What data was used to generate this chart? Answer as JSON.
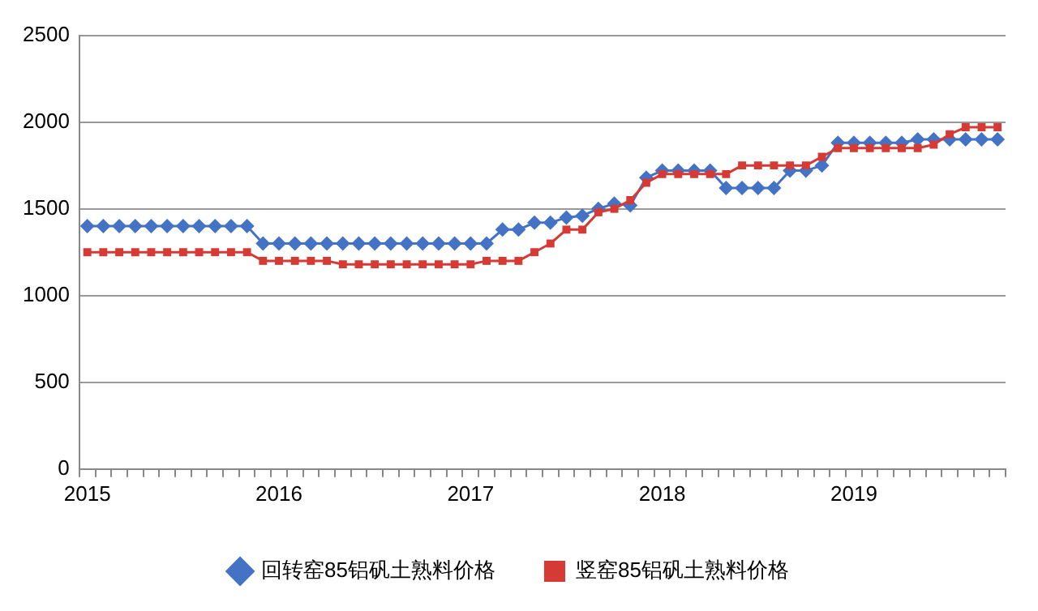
{
  "chart_data": {
    "type": "line",
    "categories": [
      "2015",
      null,
      null,
      null,
      null,
      null,
      null,
      null,
      null,
      null,
      null,
      null,
      "2016",
      null,
      null,
      null,
      null,
      null,
      null,
      null,
      null,
      null,
      null,
      null,
      "2017",
      null,
      null,
      null,
      null,
      null,
      null,
      null,
      null,
      null,
      null,
      null,
      "2018",
      null,
      null,
      null,
      null,
      null,
      null,
      null,
      null,
      null,
      null,
      null,
      "2019",
      null,
      null,
      null,
      null,
      null,
      null,
      null,
      null,
      null
    ],
    "series": [
      {
        "name": "回转窑85铝矾土熟料价格",
        "color": "#4472c4",
        "marker": "diamond",
        "values": [
          1400,
          1400,
          1400,
          1400,
          1400,
          1400,
          1400,
          1400,
          1400,
          1400,
          1400,
          1300,
          1300,
          1300,
          1300,
          1300,
          1300,
          1300,
          1300,
          1300,
          1300,
          1300,
          1300,
          1300,
          1300,
          1300,
          1380,
          1380,
          1420,
          1420,
          1450,
          1460,
          1500,
          1530,
          1520,
          1680,
          1720,
          1720,
          1720,
          1720,
          1620,
          1620,
          1620,
          1620,
          1720,
          1720,
          1750,
          1880,
          1880,
          1880,
          1880,
          1880,
          1900,
          1900,
          1900,
          1900,
          1900,
          1900
        ]
      },
      {
        "name": "竖窑85铝矾土熟料价格",
        "color": "#d63a35",
        "marker": "square",
        "values": [
          1250,
          1250,
          1250,
          1250,
          1250,
          1250,
          1250,
          1250,
          1250,
          1250,
          1250,
          1200,
          1200,
          1200,
          1200,
          1200,
          1180,
          1180,
          1180,
          1180,
          1180,
          1180,
          1180,
          1180,
          1180,
          1200,
          1200,
          1200,
          1250,
          1300,
          1380,
          1380,
          1480,
          1500,
          1550,
          1650,
          1700,
          1700,
          1700,
          1700,
          1700,
          1750,
          1750,
          1750,
          1750,
          1750,
          1800,
          1850,
          1850,
          1850,
          1850,
          1850,
          1850,
          1870,
          1930,
          1970,
          1970,
          1970
        ]
      }
    ],
    "ylim": [
      0,
      2500
    ],
    "yticks": [
      0,
      500,
      1000,
      1500,
      2000,
      2500
    ],
    "grid": "y",
    "legend": "bottom"
  }
}
